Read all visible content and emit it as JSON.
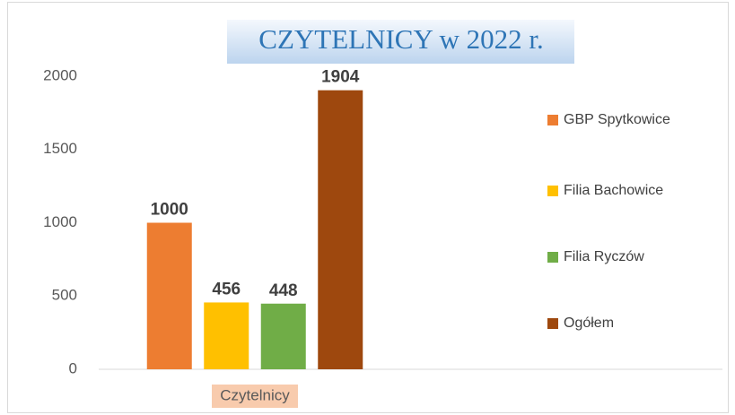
{
  "chart_data": {
    "type": "bar",
    "title": "CZYTELNICY w 2022 r.",
    "categories": [
      "Czytelnicy"
    ],
    "series": [
      {
        "name": "GBP Spytkowice",
        "color": "#ed7d31",
        "values": [
          1000
        ]
      },
      {
        "name": "Filia Bachowice",
        "color": "#ffc000",
        "values": [
          456
        ]
      },
      {
        "name": "Filia Ryczów",
        "color": "#70ad47",
        "values": [
          448
        ]
      },
      {
        "name": "Ogółem",
        "color": "#9e480e",
        "values": [
          1904
        ]
      }
    ],
    "ylim": [
      0,
      2000
    ],
    "yticks": [
      0,
      500,
      1000,
      1500,
      2000
    ],
    "grid": false,
    "legend": "right"
  }
}
